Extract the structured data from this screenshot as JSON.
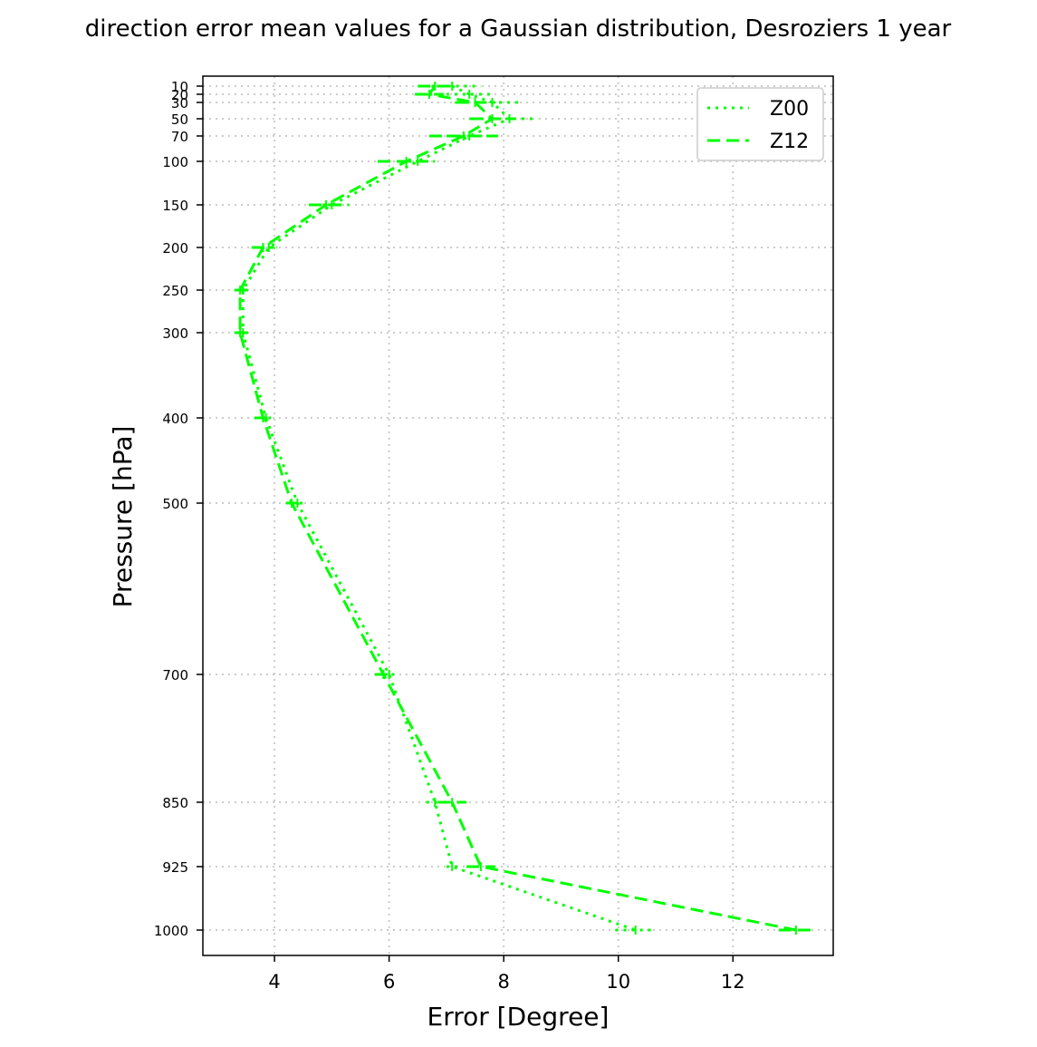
{
  "chart_data": {
    "type": "line",
    "title": "direction error mean values for a Gaussian distribution, Desroziers 1 year",
    "xlabel": "Error [Degree]",
    "ylabel": "Pressure [hPa]",
    "xlim": [
      2.75,
      13.75
    ],
    "ylim": [
      1055,
      5
    ],
    "x_ticks": [
      "4",
      "6",
      "8",
      "10",
      "12"
    ],
    "y_ticks": [
      "10",
      "20",
      "30",
      "50",
      "70",
      "100",
      "150",
      "200",
      "250",
      "300",
      "400",
      "500",
      "700",
      "850",
      "925",
      "1000"
    ],
    "grid": true,
    "legend_position": "top-right",
    "series": [
      {
        "name": "Z00",
        "linestyle": "dotted",
        "color": "#00ff00",
        "points": [
          {
            "p": 10,
            "x": 7.1,
            "err": 0.5
          },
          {
            "p": 20,
            "x": 7.4,
            "err": 0.4
          },
          {
            "p": 30,
            "x": 7.8,
            "err": 0.45
          },
          {
            "p": 50,
            "x": 8.1,
            "err": 0.5
          },
          {
            "p": 70,
            "x": 7.4,
            "err": 0.4
          },
          {
            "p": 100,
            "x": 6.5,
            "err": 0.3
          },
          {
            "p": 150,
            "x": 5.0,
            "err": 0.3
          },
          {
            "p": 200,
            "x": 3.9,
            "err": 0.15
          },
          {
            "p": 250,
            "x": 3.45,
            "err": 0.1
          },
          {
            "p": 300,
            "x": 3.45,
            "err": 0.1
          },
          {
            "p": 400,
            "x": 3.85,
            "err": 0.1
          },
          {
            "p": 500,
            "x": 4.4,
            "err": 0.1
          },
          {
            "p": 700,
            "x": 6.0,
            "err": 0.1
          },
          {
            "p": 850,
            "x": 6.8,
            "err": 0.15
          },
          {
            "p": 925,
            "x": 7.1,
            "err": 0.1
          },
          {
            "p": 1000,
            "x": 10.3,
            "err": 0.35
          }
        ]
      },
      {
        "name": "Z12",
        "linestyle": "dashed",
        "color": "#00ff00",
        "points": [
          {
            "p": 10,
            "x": 6.8,
            "err": 0.3
          },
          {
            "p": 20,
            "x": 6.7,
            "err": 0.25
          },
          {
            "p": 30,
            "x": 7.5,
            "err": 0.35
          },
          {
            "p": 50,
            "x": 7.8,
            "err": 0.4
          },
          {
            "p": 70,
            "x": 7.3,
            "err": 0.6
          },
          {
            "p": 100,
            "x": 6.3,
            "err": 0.5
          },
          {
            "p": 150,
            "x": 4.9,
            "err": 0.3
          },
          {
            "p": 200,
            "x": 3.8,
            "err": 0.2
          },
          {
            "p": 250,
            "x": 3.4,
            "err": 0.1
          },
          {
            "p": 300,
            "x": 3.4,
            "err": 0.1
          },
          {
            "p": 400,
            "x": 3.8,
            "err": 0.15
          },
          {
            "p": 500,
            "x": 4.3,
            "err": 0.1
          },
          {
            "p": 700,
            "x": 5.9,
            "err": 0.15
          },
          {
            "p": 850,
            "x": 7.1,
            "err": 0.25
          },
          {
            "p": 925,
            "x": 7.6,
            "err": 0.25
          },
          {
            "p": 1000,
            "x": 13.1,
            "err": 0.3
          }
        ]
      }
    ]
  }
}
